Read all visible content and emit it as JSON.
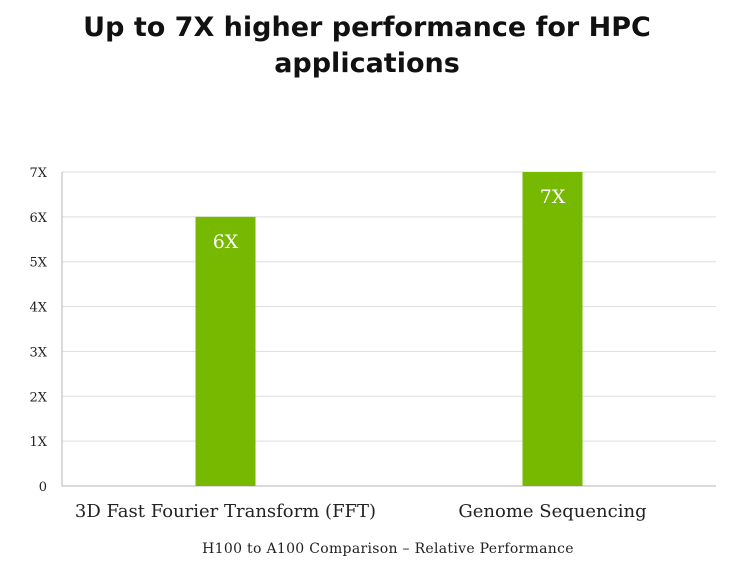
{
  "chart_data": {
    "type": "bar",
    "title_lines": [
      "Up to 7X higher performance for HPC",
      "applications"
    ],
    "categories": [
      "3D Fast Fourier Transform (FFT)",
      "Genome Sequencing"
    ],
    "values": [
      6,
      7
    ],
    "data_labels": [
      "6X",
      "7X"
    ],
    "y_ticks": [
      0,
      1,
      2,
      3,
      4,
      5,
      6,
      7
    ],
    "y_tick_labels": [
      "0",
      "1X",
      "2X",
      "3X",
      "4X",
      "5X",
      "6X",
      "7X"
    ],
    "ylim": [
      0,
      7
    ],
    "xlabel": "H100 to A100 Comparison – Relative Performance",
    "ylabel": "",
    "grid": true,
    "bar_color": "#76b900",
    "grid_color": "#dddddd"
  }
}
